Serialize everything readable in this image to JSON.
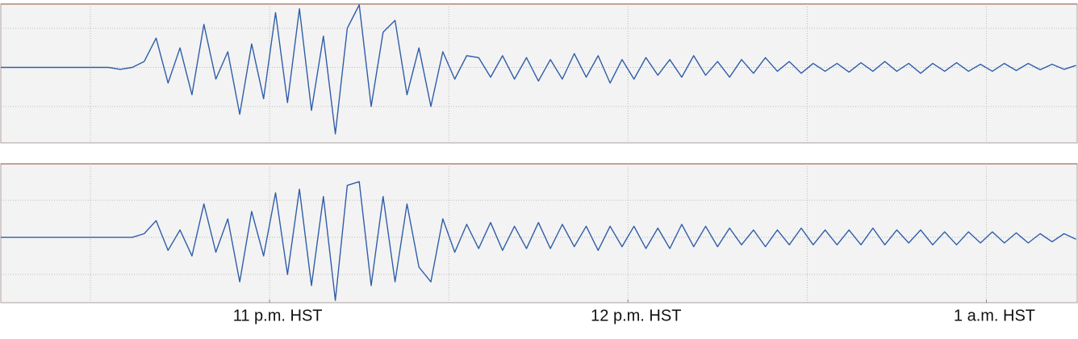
{
  "chart_data": [
    {
      "type": "line",
      "color": "#2f5ea8",
      "xlim": [
        -45,
        135.2
      ],
      "ylim": [
        -1.93,
        1.62
      ],
      "xgrid": [
        -30,
        0,
        30,
        60,
        90,
        120
      ],
      "ygrid": [
        -1,
        0,
        1
      ],
      "x": [
        -45,
        -43,
        -41,
        -39,
        -37,
        -35,
        -33,
        -31,
        -29,
        -27,
        -25,
        -23,
        -21,
        -19,
        -17,
        -15,
        -13,
        -11,
        -9,
        -7,
        -5,
        -3,
        -1,
        1,
        3,
        5,
        7,
        9,
        11,
        13,
        15,
        17,
        19,
        21,
        23,
        25,
        27,
        29,
        31,
        33,
        35,
        37,
        39,
        41,
        43,
        45,
        47,
        49,
        51,
        53,
        55,
        57,
        59,
        61,
        63,
        65,
        67,
        69,
        71,
        73,
        75,
        77,
        79,
        81,
        83,
        85,
        87,
        89,
        91,
        93,
        95,
        97,
        99,
        101,
        103,
        105,
        107,
        109,
        111,
        113,
        115,
        117,
        119,
        121,
        123,
        125,
        127,
        129,
        131,
        133,
        135
      ],
      "values": [
        0,
        0,
        0,
        0,
        0,
        0,
        0,
        0,
        0,
        0,
        -0.05,
        0,
        0.15,
        0.75,
        -0.4,
        0.5,
        -0.7,
        1.1,
        -0.3,
        0.4,
        -1.2,
        0.6,
        -0.8,
        1.4,
        -0.9,
        1.5,
        -1.1,
        0.8,
        -1.7,
        1.0,
        1.6,
        -1.0,
        0.9,
        1.2,
        -0.7,
        0.5,
        -1.0,
        0.4,
        -0.3,
        0.3,
        0.25,
        -0.25,
        0.3,
        -0.3,
        0.25,
        -0.35,
        0.2,
        -0.3,
        0.35,
        -0.25,
        0.3,
        -0.4,
        0.2,
        -0.3,
        0.25,
        -0.2,
        0.2,
        -0.25,
        0.3,
        -0.2,
        0.15,
        -0.25,
        0.2,
        -0.15,
        0.25,
        -0.1,
        0.15,
        -0.15,
        0.1,
        -0.1,
        0.1,
        -0.12,
        0.12,
        -0.1,
        0.15,
        -0.1,
        0.1,
        -0.15,
        0.1,
        -0.1,
        0.12,
        -0.1,
        0.08,
        -0.1,
        0.1,
        -0.08,
        0.1,
        -0.06,
        0.08,
        -0.05,
        0.05
      ]
    },
    {
      "type": "line",
      "color": "#2f5ea8",
      "xlim": [
        -45,
        135.2
      ],
      "ylim": [
        -1.76,
        1.98
      ],
      "xgrid": [
        -30,
        0,
        30,
        60,
        90,
        120
      ],
      "ygrid": [
        -1,
        0,
        1
      ],
      "xticks": [
        {
          "value": 0,
          "label": "11 p.m. HST"
        },
        {
          "value": 60,
          "label": "12 p.m. HST"
        },
        {
          "value": 120,
          "label": "1 a.m. HST"
        }
      ],
      "x": [
        -45,
        -43,
        -41,
        -39,
        -37,
        -35,
        -33,
        -31,
        -29,
        -27,
        -25,
        -23,
        -21,
        -19,
        -17,
        -15,
        -13,
        -11,
        -9,
        -7,
        -5,
        -3,
        -1,
        1,
        3,
        5,
        7,
        9,
        11,
        13,
        15,
        17,
        19,
        21,
        23,
        25,
        27,
        29,
        31,
        33,
        35,
        37,
        39,
        41,
        43,
        45,
        47,
        49,
        51,
        53,
        55,
        57,
        59,
        61,
        63,
        65,
        67,
        69,
        71,
        73,
        75,
        77,
        79,
        81,
        83,
        85,
        87,
        89,
        91,
        93,
        95,
        97,
        99,
        101,
        103,
        105,
        107,
        109,
        111,
        113,
        115,
        117,
        119,
        121,
        123,
        125,
        127,
        129,
        131,
        133,
        135
      ],
      "values": [
        0,
        0,
        0,
        0,
        0,
        0,
        0,
        0,
        0,
        0,
        0,
        0,
        0.1,
        0.45,
        -0.35,
        0.2,
        -0.5,
        0.9,
        -0.4,
        0.5,
        -1.2,
        0.7,
        -0.5,
        1.2,
        -1.0,
        1.3,
        -1.3,
        1.1,
        -1.7,
        1.4,
        1.5,
        -1.3,
        1.1,
        -1.2,
        0.9,
        -0.8,
        -1.2,
        0.5,
        -0.4,
        0.35,
        -0.3,
        0.4,
        -0.35,
        0.3,
        -0.3,
        0.4,
        -0.3,
        0.35,
        -0.25,
        0.3,
        -0.35,
        0.3,
        -0.25,
        0.3,
        -0.3,
        0.25,
        -0.3,
        0.35,
        -0.25,
        0.3,
        -0.25,
        0.25,
        -0.2,
        0.2,
        -0.25,
        0.2,
        -0.2,
        0.25,
        -0.2,
        0.2,
        -0.2,
        0.2,
        -0.2,
        0.25,
        -0.2,
        0.2,
        -0.15,
        0.2,
        -0.2,
        0.15,
        -0.2,
        0.15,
        -0.15,
        0.15,
        -0.15,
        0.12,
        -0.15,
        0.1,
        -0.12,
        0.1,
        -0.05
      ]
    }
  ]
}
